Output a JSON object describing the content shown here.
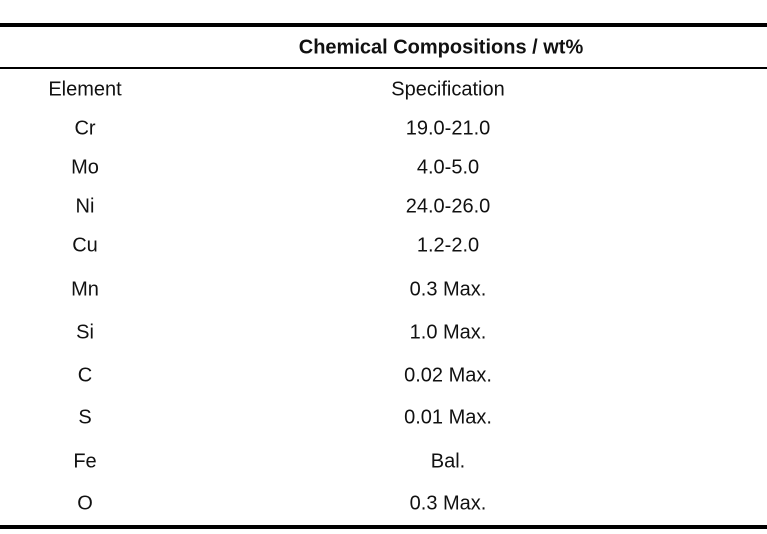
{
  "table": {
    "title": "Chemical Compositions / wt%",
    "columns": [
      "Element",
      "Specification"
    ],
    "rows": [
      [
        "Cr",
        "19.0-21.0"
      ],
      [
        "Mo",
        "4.0-5.0"
      ],
      [
        "Ni",
        "24.0-26.0"
      ],
      [
        "Cu",
        "1.2-2.0"
      ],
      [
        "Mn",
        "0.3 Max."
      ],
      [
        "Si",
        "1.0 Max."
      ],
      [
        "C",
        "0.02 Max."
      ],
      [
        "S",
        "0.01 Max."
      ],
      [
        "Fe",
        "Bal."
      ],
      [
        "O",
        "0.3 Max."
      ]
    ]
  }
}
